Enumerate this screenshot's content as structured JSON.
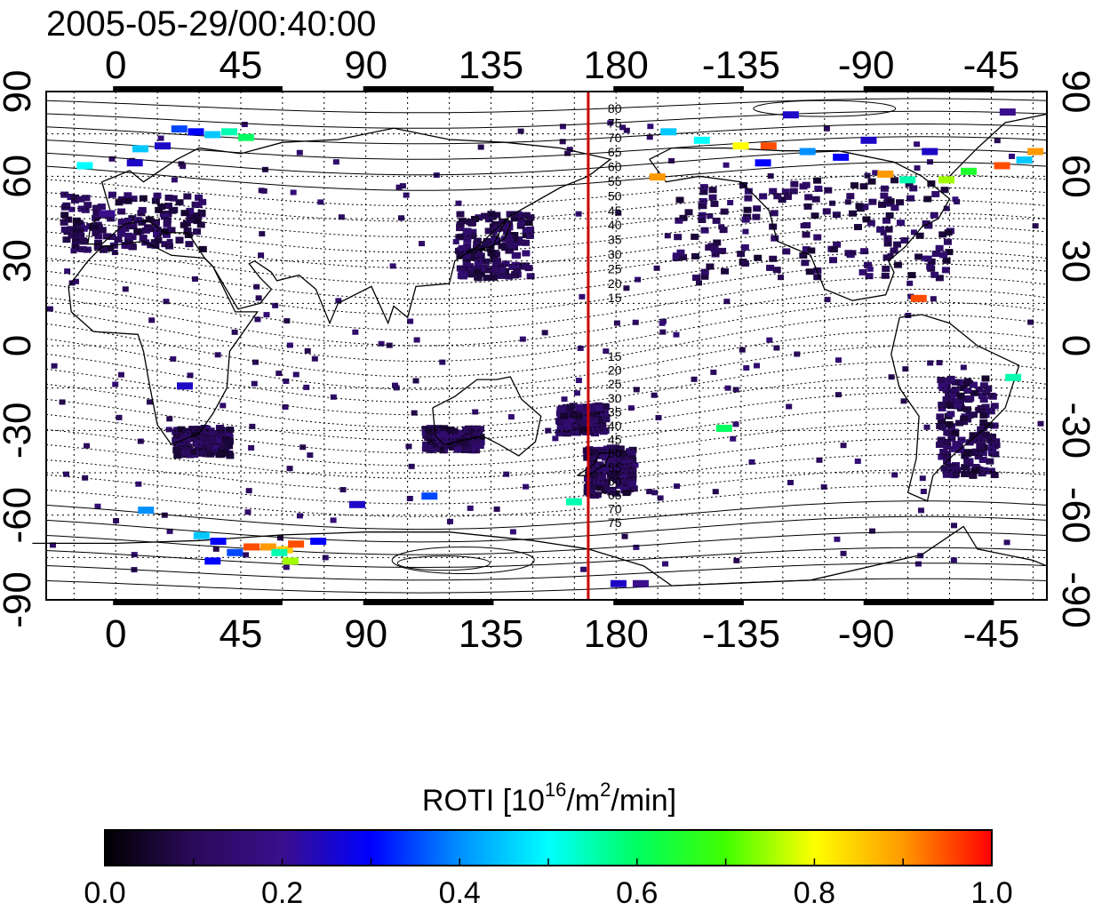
{
  "title": "2005-05-29/00:40:00",
  "map": {
    "lon_range": [
      -25,
      335
    ],
    "lat_range": [
      -90,
      90
    ],
    "top_ticks": [
      "0",
      "45",
      "90",
      "135",
      "180",
      "-135",
      "-90",
      "-45"
    ],
    "bottom_ticks": [
      "0",
      "45",
      "90",
      "135",
      "180",
      "-135",
      "-90",
      "-45"
    ],
    "left_ticks": [
      "90",
      "60",
      "30",
      "0",
      "-30",
      "-60",
      "-90"
    ],
    "right_ticks": [
      "90",
      "60",
      "30",
      "0",
      "-30",
      "-60",
      "-90"
    ],
    "tick_lons": [
      0,
      45,
      90,
      135,
      180,
      225,
      270,
      315
    ],
    "tick_lats": [
      90,
      60,
      30,
      0,
      -30,
      -60,
      -90
    ],
    "meridian_line_lon": 170,
    "meridian_line_color": "#cc0000",
    "grid": "dotted"
  },
  "contour_labels": {
    "north": [
      "80",
      "75",
      "70",
      "65",
      "60",
      "55",
      "50",
      "45",
      "40",
      "35",
      "30",
      "25",
      "20",
      "15"
    ],
    "south": [
      "15",
      "20",
      "25",
      "30",
      "35",
      "40",
      "45",
      "50",
      "55",
      "60",
      "65",
      "70",
      "75"
    ]
  },
  "colorbar": {
    "label_main": "ROTI  [10",
    "label_sup1": "16",
    "label_mid": "/m",
    "label_sup2": "2",
    "label_end": "/min]",
    "ticks": [
      "0.0",
      "0.2",
      "0.4",
      "0.6",
      "0.8",
      "1.0"
    ],
    "range": [
      0.0,
      1.0
    ],
    "colormap": [
      "#000000",
      "#2a0a5a",
      "#3a0f8c",
      "#0000ff",
      "#0090ff",
      "#00ffff",
      "#00ff60",
      "#40ff00",
      "#ffff00",
      "#ff9900",
      "#ff0000"
    ]
  },
  "roti_markers": [
    {
      "lon": 20,
      "lat": 78,
      "v": 0.35
    },
    {
      "lon": 26,
      "lat": 77,
      "v": 0.3
    },
    {
      "lon": 32,
      "lat": 76,
      "v": 0.45
    },
    {
      "lon": 38,
      "lat": 77,
      "v": 0.55
    },
    {
      "lon": 44,
      "lat": 75,
      "v": 0.6
    },
    {
      "lon": 14,
      "lat": 72,
      "v": 0.25
    },
    {
      "lon": 6,
      "lat": 71,
      "v": 0.45
    },
    {
      "lon": -14,
      "lat": 65,
      "v": 0.5
    },
    {
      "lon": 4,
      "lat": 66,
      "v": 0.25
    },
    {
      "lon": -6,
      "lat": 48,
      "v": 0.2
    },
    {
      "lon": 196,
      "lat": 77,
      "v": 0.45
    },
    {
      "lon": 208,
      "lat": 74,
      "v": 0.5
    },
    {
      "lon": 222,
      "lat": 72,
      "v": 0.8
    },
    {
      "lon": 232,
      "lat": 72,
      "v": 0.95
    },
    {
      "lon": 246,
      "lat": 70,
      "v": 0.4
    },
    {
      "lon": 258,
      "lat": 68,
      "v": 0.3
    },
    {
      "lon": 274,
      "lat": 62,
      "v": 0.9
    },
    {
      "lon": 282,
      "lat": 60,
      "v": 0.55
    },
    {
      "lon": 296,
      "lat": 60,
      "v": 0.75
    },
    {
      "lon": 304,
      "lat": 63,
      "v": 0.65
    },
    {
      "lon": 316,
      "lat": 65,
      "v": 0.95
    },
    {
      "lon": 324,
      "lat": 67,
      "v": 0.45
    },
    {
      "lon": 328,
      "lat": 70,
      "v": 0.9
    },
    {
      "lon": 240,
      "lat": 83,
      "v": 0.25
    },
    {
      "lon": 318,
      "lat": 84,
      "v": 0.2
    },
    {
      "lon": 192,
      "lat": 61,
      "v": 0.9
    },
    {
      "lon": 286,
      "lat": 18,
      "v": 0.95
    },
    {
      "lon": 216,
      "lat": -28,
      "v": 0.6
    },
    {
      "lon": 320,
      "lat": -10,
      "v": 0.55
    },
    {
      "lon": 8,
      "lat": -57,
      "v": 0.4
    },
    {
      "lon": 28,
      "lat": -66,
      "v": 0.45
    },
    {
      "lon": 34,
      "lat": -68,
      "v": 0.3
    },
    {
      "lon": 46,
      "lat": -70,
      "v": 0.95
    },
    {
      "lon": 52,
      "lat": -70,
      "v": 0.9
    },
    {
      "lon": 58,
      "lat": -71,
      "v": 0.85
    },
    {
      "lon": 62,
      "lat": -69,
      "v": 0.95
    },
    {
      "lon": 56,
      "lat": -72,
      "v": 0.55
    },
    {
      "lon": 60,
      "lat": -75,
      "v": 0.75
    },
    {
      "lon": 40,
      "lat": -72,
      "v": 0.35
    },
    {
      "lon": 32,
      "lat": -75,
      "v": 0.3
    },
    {
      "lon": 110,
      "lat": -52,
      "v": 0.35
    },
    {
      "lon": 162,
      "lat": -54,
      "v": 0.55
    },
    {
      "lon": 84,
      "lat": -55,
      "v": 0.25
    },
    {
      "lon": 70,
      "lat": -68,
      "v": 0.3
    },
    {
      "lon": 178,
      "lat": -83,
      "v": 0.25
    },
    {
      "lon": 186,
      "lat": -83,
      "v": 0.2
    },
    {
      "lon": 22,
      "lat": -13,
      "v": 0.25
    },
    {
      "lon": 230,
      "lat": 66,
      "v": 0.3
    },
    {
      "lon": 268,
      "lat": 74,
      "v": 0.25
    },
    {
      "lon": 290,
      "lat": 70,
      "v": 0.25
    }
  ]
}
